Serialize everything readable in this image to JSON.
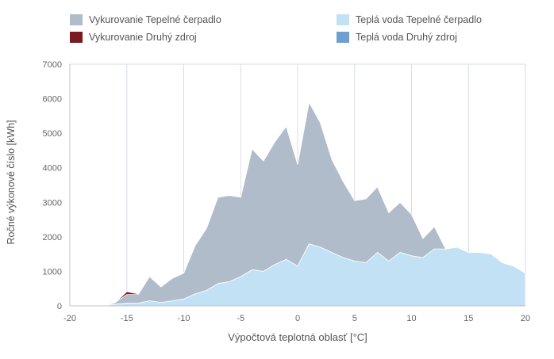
{
  "chart_data": {
    "type": "area",
    "xlabel": "Výpočtová teplotná oblasť [°C]",
    "ylabel": "Ročné výkonové číslo [kWh]",
    "xlim": [
      -20,
      20
    ],
    "ylim": [
      0,
      7000
    ],
    "x_ticks": [
      "-20",
      "-15",
      "-10",
      "-5",
      "0",
      "5",
      "10",
      "15",
      "20"
    ],
    "y_ticks": [
      "0",
      "1000",
      "2000",
      "3000",
      "4000",
      "5000",
      "6000",
      "7000"
    ],
    "grid": "vertical",
    "legend_placement": "top",
    "x": [
      -17,
      -16,
      -15,
      -14,
      -13,
      -12,
      -11,
      -10,
      -9,
      -8,
      -7,
      -6,
      -5,
      -4,
      -3,
      -2,
      -1,
      0,
      1,
      2,
      3,
      4,
      5,
      6,
      7,
      8,
      9,
      10,
      11,
      12,
      13,
      14,
      15,
      16,
      17,
      18,
      19,
      20
    ],
    "series": [
      {
        "name": "Teplá voda Tepelné čerpadlo",
        "color": "#c3e1f5",
        "values": [
          0,
          50,
          80,
          80,
          150,
          100,
          150,
          200,
          350,
          450,
          650,
          700,
          850,
          1050,
          1000,
          1200,
          1350,
          1150,
          1800,
          1700,
          1550,
          1400,
          1300,
          1250,
          1550,
          1300,
          1550,
          1450,
          1400,
          1650,
          1650,
          1700,
          1550,
          1550,
          1500,
          1250,
          1150,
          950
        ]
      },
      {
        "name": "Vykurovanie Tepelné čerpadlo",
        "color": "#b1bccb",
        "values": [
          0,
          50,
          250,
          250,
          700,
          450,
          650,
          750,
          1400,
          1800,
          2500,
          2500,
          2300,
          3500,
          3200,
          3550,
          3850,
          2950,
          4100,
          3600,
          2700,
          2200,
          1750,
          1850,
          1900,
          1400,
          1450,
          1200,
          550,
          650,
          0,
          0,
          0,
          0,
          0,
          0,
          0,
          0
        ]
      },
      {
        "name": "Vykurovanie Druhý zdroj",
        "color": "#7a1a22",
        "values": [
          0,
          0,
          80,
          20,
          0,
          0,
          0,
          0,
          0,
          0,
          0,
          0,
          0,
          0,
          0,
          0,
          0,
          0,
          0,
          0,
          0,
          0,
          0,
          0,
          0,
          0,
          0,
          0,
          0,
          0,
          0,
          0,
          0,
          0,
          0,
          0,
          0,
          0
        ]
      },
      {
        "name": "Teplá voda Druhý zdroj",
        "color": "#6e9fd0",
        "values": [
          0,
          0,
          0,
          0,
          0,
          0,
          0,
          0,
          0,
          0,
          0,
          0,
          0,
          0,
          0,
          0,
          0,
          0,
          0,
          0,
          0,
          0,
          0,
          0,
          0,
          0,
          0,
          0,
          0,
          0,
          0,
          0,
          0,
          0,
          0,
          0,
          0,
          0
        ]
      }
    ]
  }
}
